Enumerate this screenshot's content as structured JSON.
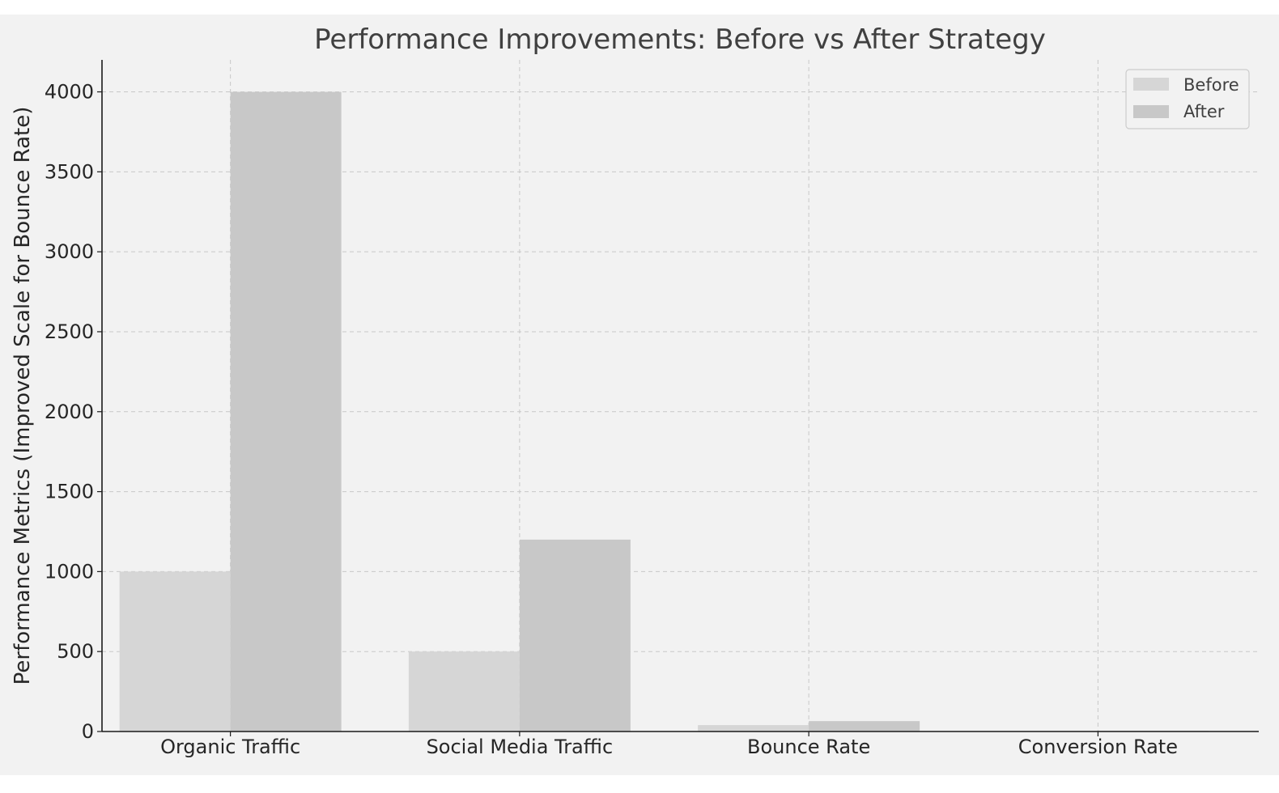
{
  "chart_data": {
    "type": "bar",
    "title": "Performance Improvements: Before vs After Strategy",
    "xlabel": "",
    "ylabel": "Performance Metrics (Improved Scale for Bounce Rate)",
    "categories": [
      "Organic Traffic",
      "Social Media Traffic",
      "Bounce Rate",
      "Conversion Rate"
    ],
    "series": [
      {
        "name": "Before",
        "values": [
          1000,
          500,
          40,
          2
        ],
        "color": "#d6d6d6"
      },
      {
        "name": "After",
        "values": [
          4000,
          1200,
          65,
          4
        ],
        "color": "#c8c8c8"
      }
    ],
    "ylim": [
      0,
      4200
    ],
    "yticks": [
      "0",
      "500",
      "1000",
      "1500",
      "2000",
      "2500",
      "3000",
      "3500",
      "4000"
    ],
    "grid": true,
    "legend_position": "top-right",
    "colors": {
      "background": "#f2f2f2",
      "before": "#d6d6d6",
      "after": "#c8c8c8"
    }
  }
}
